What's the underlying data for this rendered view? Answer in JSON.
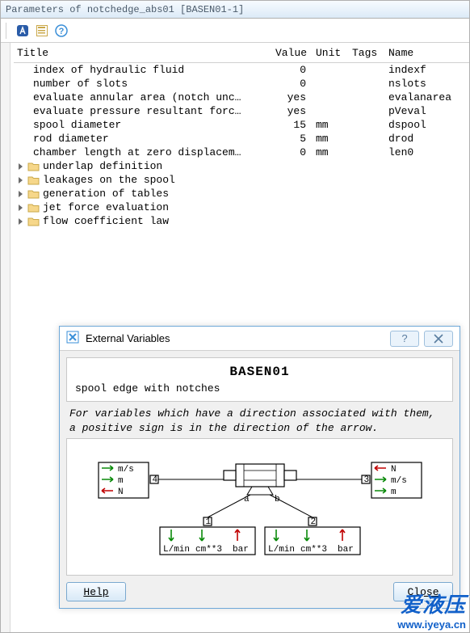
{
  "window": {
    "title": "Parameters of notchedge_abs01 [BASEN01-1]"
  },
  "toolbar": {
    "icons": [
      "app-icon",
      "form-icon",
      "help-icon"
    ]
  },
  "columns": {
    "title": "Title",
    "value": "Value",
    "unit": "Unit",
    "tags": "Tags",
    "name": "Name"
  },
  "params": [
    {
      "title": "index of hydraulic fluid",
      "value": "0",
      "unit": "",
      "name": "indexf",
      "trunc": false
    },
    {
      "title": "number of slots",
      "value": "0",
      "unit": "",
      "name": "nslots",
      "trunc": false
    },
    {
      "title": "evaluate annular area (notch unc",
      "value": "yes",
      "unit": "",
      "name": "evalanarea",
      "trunc": true
    },
    {
      "title": "evaluate pressure resultant forc",
      "value": "yes",
      "unit": "",
      "name": "pVeval",
      "trunc": true
    },
    {
      "title": "spool diameter",
      "value": "15",
      "unit": "mm",
      "name": "dspool",
      "trunc": false
    },
    {
      "title": "rod diameter",
      "value": "5",
      "unit": "mm",
      "name": "drod",
      "trunc": false
    },
    {
      "title": "chamber length at zero displacem",
      "value": "0",
      "unit": "mm",
      "name": "len0",
      "trunc": true
    }
  ],
  "folders": [
    "underlap definition",
    "leakages on the spool",
    "generation of tables",
    "jet force evaluation",
    "flow coefficient law"
  ],
  "dialog": {
    "title": "External Variables",
    "component": "BASEN01",
    "subtitle": "spool edge with notches",
    "note1": "For variables which have a direction associated with them,",
    "note2": "a positive sign is in the direction of the arrow.",
    "port_left": {
      "labels": [
        "m/s",
        "m",
        "N"
      ],
      "dirs": [
        "r",
        "r",
        "l"
      ],
      "num": "4"
    },
    "port_right": {
      "labels": [
        "N",
        "m/s",
        "m"
      ],
      "dirs": [
        "l",
        "r",
        "r"
      ],
      "num": "3"
    },
    "port_bottom_l": {
      "labels": [
        "L/min",
        "cm**3",
        "bar"
      ],
      "dirs": [
        "d",
        "d",
        "u"
      ],
      "num": "1"
    },
    "port_bottom_r": {
      "labels": [
        "L/min",
        "cm**3",
        "bar"
      ],
      "dirs": [
        "d",
        "d",
        "u"
      ],
      "num": "2"
    },
    "help": "Help",
    "close": "Close"
  },
  "watermark": {
    "cn": "爱液压",
    "url": "www.iyeya.cn"
  },
  "colors": {
    "green": "#0a8a0a",
    "red": "#c00000",
    "dlg_border": "#6fa8d8",
    "titlebar_text": "#4a5a6a",
    "btn_border": "#7aa8cf"
  }
}
